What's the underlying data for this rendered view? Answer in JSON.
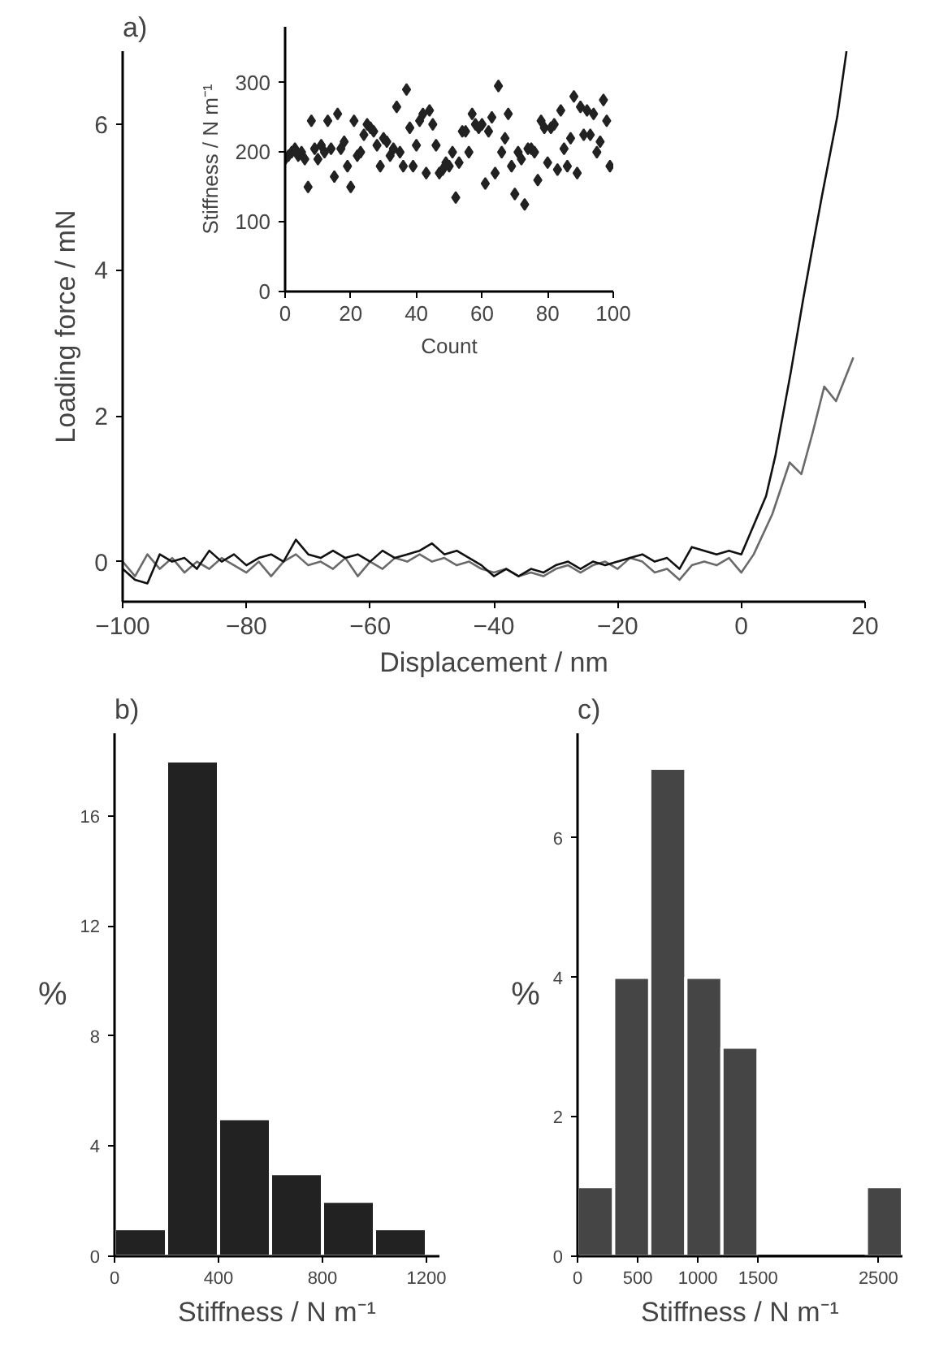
{
  "chart_data": [
    {
      "type": "line",
      "title": "a)",
      "xlabel": "Displacement / nm",
      "ylabel": "Loading force / mN",
      "xlim": [
        -100,
        20
      ],
      "ylim": [
        -0.55,
        7
      ],
      "xticks": [
        -100,
        -80,
        -60,
        -40,
        -20,
        0,
        20
      ],
      "yticks": [
        0,
        2,
        4,
        6
      ],
      "series": [
        {
          "color": "#6a6a6a",
          "x": [
            -100,
            -98,
            -96,
            -94,
            -92,
            -90,
            -88,
            -86,
            -84,
            -82,
            -80,
            -78,
            -76,
            -74,
            -72,
            -70,
            -68,
            -66,
            -64,
            -62,
            -60,
            -58,
            -56,
            -54,
            -52,
            -50,
            -48,
            -46,
            -44,
            -42,
            -40,
            -38,
            -36,
            -34,
            -32,
            -30,
            -28,
            -26,
            -24,
            -22,
            -20,
            -18,
            -16,
            -14,
            -12,
            -10,
            -8,
            -6,
            -4,
            -2,
            0,
            2,
            5,
            7.8,
            9.7,
            11.5,
            13.4,
            15.3,
            18.1
          ],
          "values": [
            0.0,
            -0.2,
            0.1,
            -0.1,
            0.05,
            -0.15,
            0.0,
            -0.1,
            0.05,
            -0.05,
            -0.15,
            0.0,
            -0.2,
            0.0,
            0.1,
            -0.05,
            0.0,
            -0.1,
            0.05,
            -0.2,
            0.0,
            -0.1,
            0.05,
            0.0,
            0.1,
            0.0,
            0.05,
            -0.05,
            0.0,
            -0.1,
            -0.15,
            -0.1,
            -0.2,
            -0.15,
            -0.2,
            -0.1,
            -0.05,
            -0.15,
            -0.05,
            0.0,
            -0.1,
            0.05,
            0.0,
            -0.15,
            -0.1,
            -0.25,
            -0.05,
            0.0,
            -0.05,
            0.05,
            -0.15,
            0.1,
            0.65,
            1.36,
            1.2,
            1.76,
            2.4,
            2.2,
            2.8
          ]
        },
        {
          "color": "#111111",
          "x": [
            -100,
            -98,
            -96,
            -94,
            -92,
            -90,
            -88,
            -86,
            -84,
            -82,
            -80,
            -78,
            -76,
            -74,
            -72,
            -70,
            -68,
            -66,
            -64,
            -62,
            -60,
            -58,
            -56,
            -54,
            -52,
            -50,
            -48,
            -46,
            -44,
            -42,
            -40,
            -38,
            -36,
            -34,
            -32,
            -30,
            -28,
            -26,
            -24,
            -22,
            -20,
            -18,
            -16,
            -14,
            -12,
            -10,
            -8,
            -6,
            -4,
            -2,
            0,
            1,
            2,
            4,
            5.5,
            8,
            10,
            11.7,
            13,
            15.5,
            17
          ],
          "values": [
            -0.1,
            -0.25,
            -0.3,
            0.1,
            0.0,
            0.05,
            -0.1,
            0.15,
            0.0,
            0.1,
            -0.05,
            0.05,
            0.1,
            0.0,
            0.3,
            0.1,
            0.05,
            0.15,
            0.05,
            0.1,
            0.0,
            0.15,
            0.05,
            0.1,
            0.15,
            0.25,
            0.1,
            0.15,
            0.05,
            -0.05,
            -0.2,
            -0.1,
            -0.2,
            -0.1,
            -0.15,
            -0.05,
            0.0,
            -0.1,
            0.0,
            -0.05,
            0.0,
            0.05,
            0.1,
            0.0,
            0.05,
            -0.1,
            0.2,
            0.15,
            0.1,
            0.15,
            0.1,
            0.3,
            0.5,
            0.9,
            1.45,
            2.6,
            3.6,
            4.4,
            5.0,
            6.1,
            7.0
          ]
        }
      ]
    },
    {
      "type": "scatter",
      "xlabel": "Count",
      "ylabel": "Stiffness / N m⁻¹",
      "xlim": [
        0,
        100
      ],
      "ylim": [
        0,
        380
      ],
      "xticks": [
        0,
        20,
        40,
        60,
        80,
        100
      ],
      "yticks": [
        0,
        100,
        200,
        300
      ],
      "marker": "diamond",
      "series": [
        {
          "color": "#222222",
          "x": [
            0,
            1,
            2,
            3,
            4,
            5,
            6,
            7,
            8,
            9,
            10,
            11,
            12,
            13,
            14,
            15,
            16,
            17,
            18,
            19,
            20,
            21,
            22,
            23,
            24,
            25,
            26,
            27,
            28,
            29,
            30,
            31,
            32,
            33,
            34,
            35,
            36,
            37,
            38,
            39,
            40,
            41,
            42,
            43,
            44,
            45,
            46,
            47,
            48,
            49,
            50,
            51,
            52,
            53,
            54,
            55,
            56,
            57,
            58,
            59,
            60,
            61,
            62,
            63,
            64,
            65,
            66,
            67,
            68,
            69,
            70,
            71,
            72,
            73,
            74,
            75,
            76,
            77,
            78,
            79,
            80,
            81,
            82,
            83,
            84,
            85,
            86,
            87,
            88,
            89,
            90,
            91,
            92,
            93,
            94,
            95,
            96,
            97,
            98,
            99
          ],
          "values": [
            190,
            195,
            200,
            205,
            195,
            200,
            190,
            150,
            245,
            205,
            190,
            210,
            200,
            245,
            205,
            165,
            255,
            205,
            215,
            180,
            150,
            245,
            195,
            200,
            225,
            240,
            235,
            230,
            210,
            180,
            220,
            215,
            195,
            205,
            265,
            200,
            180,
            290,
            235,
            180,
            210,
            245,
            255,
            170,
            260,
            240,
            210,
            170,
            175,
            185,
            180,
            200,
            135,
            185,
            230,
            230,
            200,
            255,
            240,
            235,
            240,
            155,
            230,
            250,
            170,
            295,
            200,
            220,
            255,
            180,
            140,
            200,
            190,
            125,
            205,
            205,
            200,
            160,
            245,
            235,
            185,
            235,
            240,
            175,
            260,
            205,
            180,
            220,
            280,
            170,
            265,
            225,
            260,
            225,
            255,
            200,
            215,
            275,
            245,
            180
          ]
        }
      ]
    },
    {
      "type": "histogram",
      "title": "b)",
      "xlabel": "Stiffness / N m⁻¹",
      "ylabel": "%",
      "color": "#222222",
      "bins": [
        0,
        200,
        400,
        600,
        800,
        1000,
        1200
      ],
      "values": [
        1,
        18,
        5,
        3,
        2,
        1
      ],
      "xlim": [
        0,
        1250
      ],
      "ylim": [
        0,
        19
      ],
      "xticks": [
        0,
        400,
        800,
        1200
      ],
      "yticks": [
        0,
        4,
        8,
        12,
        16
      ]
    },
    {
      "type": "histogram",
      "title": "c)",
      "xlabel": "Stiffness / N m⁻¹",
      "ylabel": "%",
      "color": "#454545",
      "bins": [
        0,
        300,
        600,
        900,
        1200,
        1500,
        2400,
        2700
      ],
      "values": [
        1,
        4,
        7,
        4,
        3,
        0,
        1
      ],
      "xlim": [
        0,
        2700
      ],
      "ylim": [
        0,
        7.5
      ],
      "xticks": [
        0,
        500,
        1000,
        1500,
        2500
      ],
      "yticks": [
        0,
        2,
        4,
        6
      ]
    }
  ]
}
